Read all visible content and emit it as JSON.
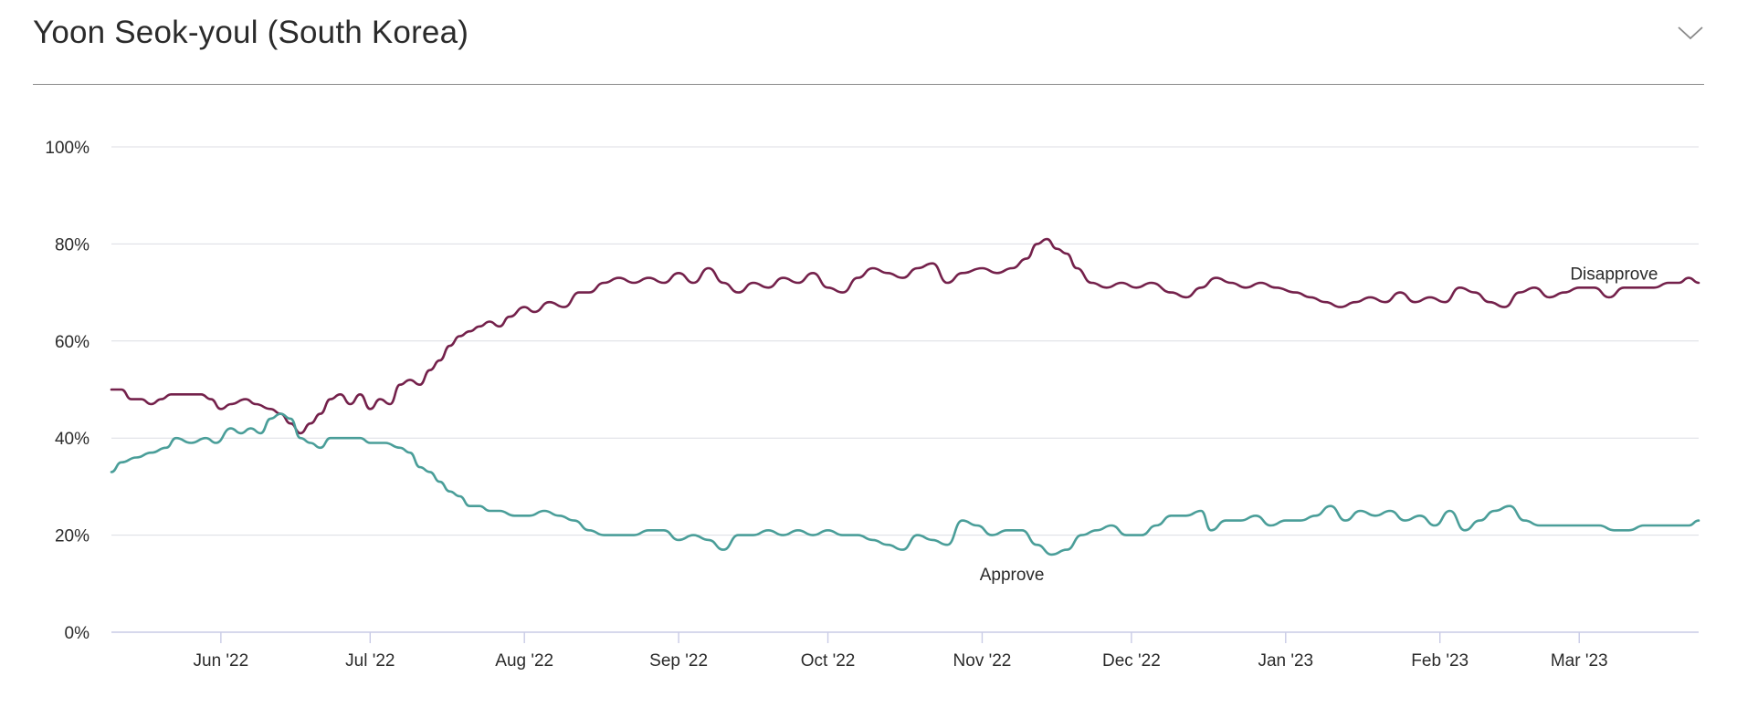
{
  "header": {
    "title": "Yoon Seok-youl (South Korea)",
    "collapse_icon": "chevron-down-icon"
  },
  "colors": {
    "approve": "#4a9e99",
    "disapprove": "#74214b",
    "grid": "#dcdde3",
    "axis": "#c9cbe6"
  },
  "chart_data": {
    "type": "line",
    "title": "Yoon Seok-youl (South Korea)",
    "xlabel": "",
    "ylabel": "",
    "ylim": [
      0,
      100
    ],
    "xlim": [
      "2022-05-10",
      "2023-03-25"
    ],
    "grid": true,
    "y_ticks": [
      0,
      20,
      40,
      60,
      80,
      100
    ],
    "y_tick_labels": [
      "0%",
      "20%",
      "40%",
      "60%",
      "80%",
      "100%"
    ],
    "x_ticks": [
      {
        "date": "2022-06-01",
        "label": "Jun '22"
      },
      {
        "date": "2022-07-01",
        "label": "Jul '22"
      },
      {
        "date": "2022-08-01",
        "label": "Aug '22"
      },
      {
        "date": "2022-09-01",
        "label": "Sep '22"
      },
      {
        "date": "2022-10-01",
        "label": "Oct '22"
      },
      {
        "date": "2022-11-01",
        "label": "Nov '22"
      },
      {
        "date": "2022-12-01",
        "label": "Dec '22"
      },
      {
        "date": "2023-01-01",
        "label": "Jan '23"
      },
      {
        "date": "2023-02-01",
        "label": "Feb '23"
      },
      {
        "date": "2023-03-01",
        "label": "Mar '23"
      }
    ],
    "series": [
      {
        "name": "Disapprove",
        "label_at": {
          "date": "2023-03-08",
          "value": 74
        },
        "points": [
          [
            "2022-05-10",
            50
          ],
          [
            "2022-05-12",
            50
          ],
          [
            "2022-05-14",
            48
          ],
          [
            "2022-05-16",
            48
          ],
          [
            "2022-05-18",
            47
          ],
          [
            "2022-05-20",
            48
          ],
          [
            "2022-05-22",
            49
          ],
          [
            "2022-05-25",
            49
          ],
          [
            "2022-05-28",
            49
          ],
          [
            "2022-05-30",
            48
          ],
          [
            "2022-06-01",
            46
          ],
          [
            "2022-06-03",
            47
          ],
          [
            "2022-06-06",
            48
          ],
          [
            "2022-06-08",
            47
          ],
          [
            "2022-06-11",
            46
          ],
          [
            "2022-06-13",
            45
          ],
          [
            "2022-06-15",
            43
          ],
          [
            "2022-06-17",
            41
          ],
          [
            "2022-06-19",
            43
          ],
          [
            "2022-06-21",
            45
          ],
          [
            "2022-06-23",
            48
          ],
          [
            "2022-06-25",
            49
          ],
          [
            "2022-06-27",
            47
          ],
          [
            "2022-06-29",
            49
          ],
          [
            "2022-07-01",
            46
          ],
          [
            "2022-07-03",
            48
          ],
          [
            "2022-07-05",
            47
          ],
          [
            "2022-07-07",
            51
          ],
          [
            "2022-07-09",
            52
          ],
          [
            "2022-07-11",
            51
          ],
          [
            "2022-07-13",
            54
          ],
          [
            "2022-07-15",
            56
          ],
          [
            "2022-07-17",
            59
          ],
          [
            "2022-07-19",
            61
          ],
          [
            "2022-07-21",
            62
          ],
          [
            "2022-07-23",
            63
          ],
          [
            "2022-07-25",
            64
          ],
          [
            "2022-07-27",
            63
          ],
          [
            "2022-07-29",
            65
          ],
          [
            "2022-08-01",
            67
          ],
          [
            "2022-08-03",
            66
          ],
          [
            "2022-08-06",
            68
          ],
          [
            "2022-08-09",
            67
          ],
          [
            "2022-08-12",
            70
          ],
          [
            "2022-08-14",
            70
          ],
          [
            "2022-08-17",
            72
          ],
          [
            "2022-08-20",
            73
          ],
          [
            "2022-08-23",
            72
          ],
          [
            "2022-08-26",
            73
          ],
          [
            "2022-08-29",
            72
          ],
          [
            "2022-09-01",
            74
          ],
          [
            "2022-09-04",
            72
          ],
          [
            "2022-09-07",
            75
          ],
          [
            "2022-09-10",
            72
          ],
          [
            "2022-09-13",
            70
          ],
          [
            "2022-09-16",
            72
          ],
          [
            "2022-09-19",
            71
          ],
          [
            "2022-09-22",
            73
          ],
          [
            "2022-09-25",
            72
          ],
          [
            "2022-09-28",
            74
          ],
          [
            "2022-10-01",
            71
          ],
          [
            "2022-10-04",
            70
          ],
          [
            "2022-10-07",
            73
          ],
          [
            "2022-10-10",
            75
          ],
          [
            "2022-10-13",
            74
          ],
          [
            "2022-10-16",
            73
          ],
          [
            "2022-10-19",
            75
          ],
          [
            "2022-10-22",
            76
          ],
          [
            "2022-10-25",
            72
          ],
          [
            "2022-10-28",
            74
          ],
          [
            "2022-11-01",
            75
          ],
          [
            "2022-11-04",
            74
          ],
          [
            "2022-11-07",
            75
          ],
          [
            "2022-11-10",
            77
          ],
          [
            "2022-11-12",
            80
          ],
          [
            "2022-11-14",
            81
          ],
          [
            "2022-11-16",
            79
          ],
          [
            "2022-11-18",
            78
          ],
          [
            "2022-11-20",
            75
          ],
          [
            "2022-11-23",
            72
          ],
          [
            "2022-11-26",
            71
          ],
          [
            "2022-11-29",
            72
          ],
          [
            "2022-12-02",
            71
          ],
          [
            "2022-12-05",
            72
          ],
          [
            "2022-12-09",
            70
          ],
          [
            "2022-12-12",
            69
          ],
          [
            "2022-12-15",
            71
          ],
          [
            "2022-12-18",
            73
          ],
          [
            "2022-12-21",
            72
          ],
          [
            "2022-12-24",
            71
          ],
          [
            "2022-12-27",
            72
          ],
          [
            "2022-12-30",
            71
          ],
          [
            "2023-01-03",
            70
          ],
          [
            "2023-01-06",
            69
          ],
          [
            "2023-01-09",
            68
          ],
          [
            "2023-01-12",
            67
          ],
          [
            "2023-01-15",
            68
          ],
          [
            "2023-01-18",
            69
          ],
          [
            "2023-01-21",
            68
          ],
          [
            "2023-01-24",
            70
          ],
          [
            "2023-01-27",
            68
          ],
          [
            "2023-01-30",
            69
          ],
          [
            "2023-02-02",
            68
          ],
          [
            "2023-02-05",
            71
          ],
          [
            "2023-02-08",
            70
          ],
          [
            "2023-02-11",
            68
          ],
          [
            "2023-02-14",
            67
          ],
          [
            "2023-02-17",
            70
          ],
          [
            "2023-02-20",
            71
          ],
          [
            "2023-02-23",
            69
          ],
          [
            "2023-02-26",
            70
          ],
          [
            "2023-03-01",
            71
          ],
          [
            "2023-03-04",
            71
          ],
          [
            "2023-03-07",
            69
          ],
          [
            "2023-03-10",
            71
          ],
          [
            "2023-03-13",
            71
          ],
          [
            "2023-03-16",
            71
          ],
          [
            "2023-03-19",
            72
          ],
          [
            "2023-03-21",
            72
          ],
          [
            "2023-03-23",
            73
          ],
          [
            "2023-03-25",
            72
          ]
        ]
      },
      {
        "name": "Approve",
        "label_at": {
          "date": "2022-11-07",
          "value": 12
        },
        "points": [
          [
            "2022-05-10",
            33
          ],
          [
            "2022-05-12",
            35
          ],
          [
            "2022-05-15",
            36
          ],
          [
            "2022-05-18",
            37
          ],
          [
            "2022-05-21",
            38
          ],
          [
            "2022-05-23",
            40
          ],
          [
            "2022-05-26",
            39
          ],
          [
            "2022-05-29",
            40
          ],
          [
            "2022-05-31",
            39
          ],
          [
            "2022-06-03",
            42
          ],
          [
            "2022-06-05",
            41
          ],
          [
            "2022-06-07",
            42
          ],
          [
            "2022-06-09",
            41
          ],
          [
            "2022-06-11",
            44
          ],
          [
            "2022-06-13",
            45
          ],
          [
            "2022-06-15",
            44
          ],
          [
            "2022-06-17",
            40
          ],
          [
            "2022-06-19",
            39
          ],
          [
            "2022-06-21",
            38
          ],
          [
            "2022-06-23",
            40
          ],
          [
            "2022-06-26",
            40
          ],
          [
            "2022-06-29",
            40
          ],
          [
            "2022-07-01",
            39
          ],
          [
            "2022-07-04",
            39
          ],
          [
            "2022-07-07",
            38
          ],
          [
            "2022-07-09",
            37
          ],
          [
            "2022-07-11",
            34
          ],
          [
            "2022-07-13",
            33
          ],
          [
            "2022-07-15",
            31
          ],
          [
            "2022-07-17",
            29
          ],
          [
            "2022-07-19",
            28
          ],
          [
            "2022-07-21",
            26
          ],
          [
            "2022-07-23",
            26
          ],
          [
            "2022-07-25",
            25
          ],
          [
            "2022-07-27",
            25
          ],
          [
            "2022-07-30",
            24
          ],
          [
            "2022-08-02",
            24
          ],
          [
            "2022-08-05",
            25
          ],
          [
            "2022-08-08",
            24
          ],
          [
            "2022-08-11",
            23
          ],
          [
            "2022-08-14",
            21
          ],
          [
            "2022-08-17",
            20
          ],
          [
            "2022-08-20",
            20
          ],
          [
            "2022-08-23",
            20
          ],
          [
            "2022-08-26",
            21
          ],
          [
            "2022-08-29",
            21
          ],
          [
            "2022-09-01",
            19
          ],
          [
            "2022-09-04",
            20
          ],
          [
            "2022-09-07",
            19
          ],
          [
            "2022-09-10",
            17
          ],
          [
            "2022-09-13",
            20
          ],
          [
            "2022-09-16",
            20
          ],
          [
            "2022-09-19",
            21
          ],
          [
            "2022-09-22",
            20
          ],
          [
            "2022-09-25",
            21
          ],
          [
            "2022-09-28",
            20
          ],
          [
            "2022-10-01",
            21
          ],
          [
            "2022-10-04",
            20
          ],
          [
            "2022-10-07",
            20
          ],
          [
            "2022-10-10",
            19
          ],
          [
            "2022-10-13",
            18
          ],
          [
            "2022-10-16",
            17
          ],
          [
            "2022-10-19",
            20
          ],
          [
            "2022-10-22",
            19
          ],
          [
            "2022-10-25",
            18
          ],
          [
            "2022-10-28",
            23
          ],
          [
            "2022-10-31",
            22
          ],
          [
            "2022-11-03",
            20
          ],
          [
            "2022-11-06",
            21
          ],
          [
            "2022-11-09",
            21
          ],
          [
            "2022-11-12",
            18
          ],
          [
            "2022-11-15",
            16
          ],
          [
            "2022-11-18",
            17
          ],
          [
            "2022-11-21",
            20
          ],
          [
            "2022-11-24",
            21
          ],
          [
            "2022-11-27",
            22
          ],
          [
            "2022-11-30",
            20
          ],
          [
            "2022-12-03",
            20
          ],
          [
            "2022-12-06",
            22
          ],
          [
            "2022-12-09",
            24
          ],
          [
            "2022-12-12",
            24
          ],
          [
            "2022-12-15",
            25
          ],
          [
            "2022-12-17",
            21
          ],
          [
            "2022-12-20",
            23
          ],
          [
            "2022-12-23",
            23
          ],
          [
            "2022-12-26",
            24
          ],
          [
            "2022-12-29",
            22
          ],
          [
            "2023-01-01",
            23
          ],
          [
            "2023-01-04",
            23
          ],
          [
            "2023-01-07",
            24
          ],
          [
            "2023-01-10",
            26
          ],
          [
            "2023-01-13",
            23
          ],
          [
            "2023-01-16",
            25
          ],
          [
            "2023-01-19",
            24
          ],
          [
            "2023-01-22",
            25
          ],
          [
            "2023-01-25",
            23
          ],
          [
            "2023-01-28",
            24
          ],
          [
            "2023-01-31",
            22
          ],
          [
            "2023-02-03",
            25
          ],
          [
            "2023-02-06",
            21
          ],
          [
            "2023-02-09",
            23
          ],
          [
            "2023-02-12",
            25
          ],
          [
            "2023-02-15",
            26
          ],
          [
            "2023-02-18",
            23
          ],
          [
            "2023-02-21",
            22
          ],
          [
            "2023-02-24",
            22
          ],
          [
            "2023-02-27",
            22
          ],
          [
            "2023-03-02",
            22
          ],
          [
            "2023-03-05",
            22
          ],
          [
            "2023-03-08",
            21
          ],
          [
            "2023-03-11",
            21
          ],
          [
            "2023-03-14",
            22
          ],
          [
            "2023-03-17",
            22
          ],
          [
            "2023-03-20",
            22
          ],
          [
            "2023-03-23",
            22
          ],
          [
            "2023-03-25",
            23
          ]
        ]
      }
    ]
  }
}
